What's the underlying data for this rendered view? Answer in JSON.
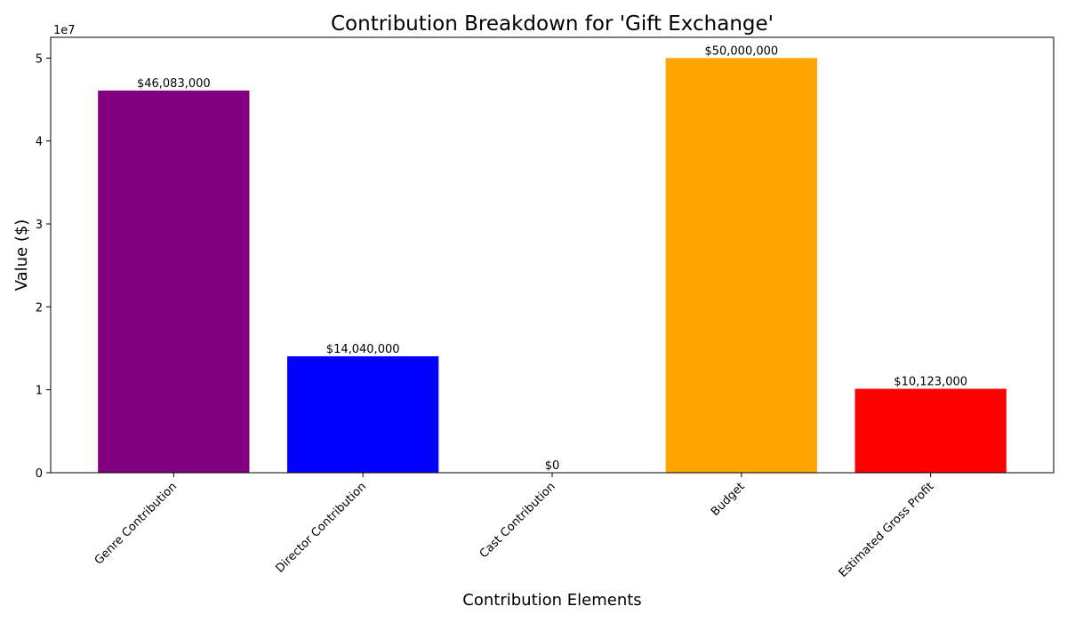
{
  "chart_data": {
    "type": "bar",
    "title": "Contribution Breakdown for 'Gift Exchange'",
    "xlabel": "Contribution Elements",
    "ylabel": "Value ($)",
    "y_offset_label": "1e7",
    "ylim": [
      0,
      52500000
    ],
    "y_ticks": [
      0,
      10000000,
      20000000,
      30000000,
      40000000,
      50000000
    ],
    "y_tick_labels": [
      "0",
      "1",
      "2",
      "3",
      "4",
      "5"
    ],
    "categories": [
      "Genre Contribution",
      "Director Contribution",
      "Cast Contribution",
      "Budget",
      "Estimated Gross Profit"
    ],
    "values": [
      46083000,
      14040000,
      0,
      50000000,
      10123000
    ],
    "data_labels": [
      "$46,083,000",
      "$14,040,000",
      "$0",
      "$50,000,000",
      "$10,123,000"
    ],
    "colors": [
      "#800080",
      "#0000ff",
      "#008000",
      "#ffa500",
      "#ff0000"
    ],
    "grid": false,
    "legend": "none"
  }
}
